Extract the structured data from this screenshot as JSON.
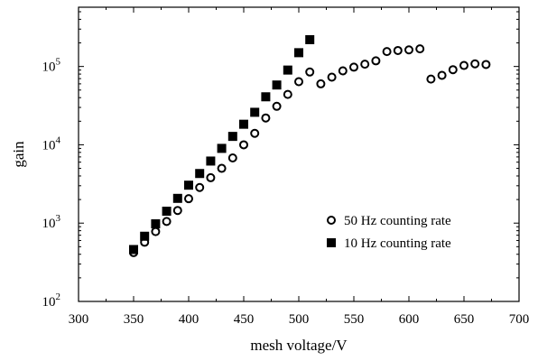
{
  "chart_data": {
    "type": "scatter",
    "title": "",
    "xlabel": "mesh voltage/V",
    "ylabel": "gain",
    "xlim": [
      300,
      700
    ],
    "ylim": [
      100,
      500000
    ],
    "y_scale": "log",
    "x_ticks": [
      300,
      350,
      400,
      450,
      500,
      550,
      600,
      650,
      700
    ],
    "y_ticks": [
      {
        "value": 100,
        "base": "10",
        "exp": "2"
      },
      {
        "value": 1000,
        "base": "10",
        "exp": "3"
      },
      {
        "value": 10000,
        "base": "10",
        "exp": "4"
      },
      {
        "value": 100000,
        "base": "10",
        "exp": "5"
      }
    ],
    "grid": false,
    "legend_position": "lower-right",
    "series": [
      {
        "name": "50 Hz counting rate",
        "marker": "open-circle",
        "color": "#000000",
        "x": [
          350,
          360,
          370,
          380,
          390,
          400,
          410,
          420,
          430,
          440,
          450,
          460,
          470,
          480,
          490,
          500,
          510,
          520,
          530,
          540,
          550,
          560,
          570,
          580,
          590,
          600,
          610,
          620,
          630,
          640,
          650,
          660,
          670
        ],
        "y": [
          420,
          570,
          780,
          1050,
          1450,
          2050,
          2850,
          3800,
          5000,
          6800,
          10000,
          14000,
          22000,
          31000,
          44000,
          64000,
          85000,
          60000,
          73000,
          88000,
          98000,
          107000,
          118000,
          155000,
          160000,
          163000,
          168000,
          69000,
          77000,
          91000,
          103000,
          108000,
          106000
        ]
      },
      {
        "name": "10 Hz counting rate",
        "marker": "filled-square",
        "color": "#000000",
        "x": [
          350,
          360,
          370,
          380,
          390,
          400,
          410,
          420,
          430,
          440,
          450,
          460,
          470,
          480,
          490,
          500,
          510
        ],
        "y": [
          460,
          680,
          980,
          1420,
          2070,
          3050,
          4300,
          6200,
          9000,
          12800,
          18300,
          26000,
          41000,
          58000,
          90000,
          150000,
          220000
        ]
      }
    ]
  }
}
